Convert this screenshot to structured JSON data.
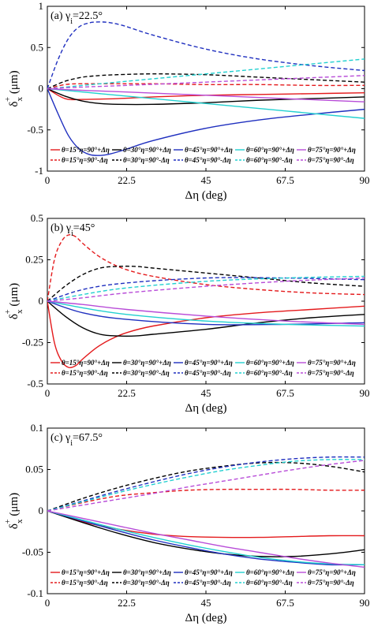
{
  "colors": {
    "15": "#e41a1c",
    "30": "#000000",
    "45": "#1f2fbf",
    "60": "#22d0d0",
    "75": "#b84cd8"
  },
  "chart_data": [
    {
      "type": "line",
      "title": "(a) γi=22.5°",
      "xlabel": "Δη (deg)",
      "ylabel": "δx+ (μm)",
      "xlim": [
        0,
        90
      ],
      "ylim": [
        -1,
        1
      ],
      "xticks": [
        0,
        22.5,
        45,
        67.5,
        90
      ],
      "xtick_labels": [
        "0",
        "22.5",
        "45",
        "67.5",
        "90"
      ],
      "yticks": [
        -1,
        -0.5,
        0,
        0.5,
        1
      ],
      "ytick_labels": [
        "-1",
        "-0.5",
        "0",
        "0.5",
        "1"
      ],
      "legend_position": "bottom",
      "series": [
        {
          "name": "θ=15°η=90°+Δη",
          "theta": "15",
          "style": "solid",
          "x": [
            0,
            5,
            10,
            20,
            30,
            45,
            60,
            75,
            90
          ],
          "y": [
            0,
            -0.12,
            -0.13,
            -0.12,
            -0.1,
            -0.08,
            -0.07,
            -0.06,
            -0.05
          ]
        },
        {
          "name": "θ=15°η=90°-Δη",
          "theta": "15",
          "style": "dashed",
          "x": [
            0,
            5,
            10,
            20,
            30,
            45,
            60,
            75,
            90
          ],
          "y": [
            0,
            0.05,
            0.06,
            0.06,
            0.06,
            0.05,
            0.05,
            0.04,
            0.04
          ]
        },
        {
          "name": "θ=30°η=90°+Δη",
          "theta": "30",
          "style": "solid",
          "x": [
            0,
            5,
            10,
            15,
            20,
            30,
            45,
            60,
            75,
            90
          ],
          "y": [
            0,
            -0.09,
            -0.15,
            -0.18,
            -0.19,
            -0.19,
            -0.17,
            -0.14,
            -0.12,
            -0.1
          ]
        },
        {
          "name": "θ=30°η=90°-Δη",
          "theta": "30",
          "style": "dashed",
          "x": [
            0,
            5,
            10,
            15,
            20,
            30,
            45,
            60,
            75,
            90
          ],
          "y": [
            0,
            0.09,
            0.14,
            0.16,
            0.17,
            0.18,
            0.17,
            0.14,
            0.11,
            0.08
          ]
        },
        {
          "name": "θ=45°η=90°+Δη",
          "theta": "45",
          "style": "solid",
          "x": [
            0,
            3,
            6,
            9,
            12,
            15,
            18,
            22,
            30,
            45,
            60,
            75,
            90
          ],
          "y": [
            0,
            -0.3,
            -0.57,
            -0.73,
            -0.8,
            -0.81,
            -0.79,
            -0.74,
            -0.63,
            -0.48,
            -0.38,
            -0.31,
            -0.25
          ]
        },
        {
          "name": "θ=45°η=90°-Δη",
          "theta": "45",
          "style": "dashed",
          "x": [
            0,
            3,
            6,
            9,
            12,
            15,
            18,
            22,
            30,
            45,
            60,
            75,
            90
          ],
          "y": [
            0,
            0.35,
            0.61,
            0.75,
            0.8,
            0.81,
            0.8,
            0.76,
            0.65,
            0.48,
            0.36,
            0.28,
            0.22
          ]
        },
        {
          "name": "θ=60°η=90°+Δη",
          "theta": "60",
          "style": "solid",
          "x": [
            0,
            10,
            22.5,
            45,
            67.5,
            90
          ],
          "y": [
            0,
            -0.04,
            -0.09,
            -0.18,
            -0.27,
            -0.36
          ]
        },
        {
          "name": "θ=60°η=90°-Δη",
          "theta": "60",
          "style": "dashed",
          "x": [
            0,
            10,
            22.5,
            45,
            67.5,
            90
          ],
          "y": [
            0,
            0.04,
            0.09,
            0.18,
            0.27,
            0.36
          ]
        },
        {
          "name": "θ=75°η=90°+Δη",
          "theta": "75",
          "style": "solid",
          "x": [
            0,
            10,
            22.5,
            45,
            67.5,
            90
          ],
          "y": [
            0,
            -0.02,
            -0.04,
            -0.08,
            -0.12,
            -0.16
          ]
        },
        {
          "name": "θ=75°η=90°-Δη",
          "theta": "75",
          "style": "dashed",
          "x": [
            0,
            10,
            22.5,
            45,
            67.5,
            90
          ],
          "y": [
            0,
            0.02,
            0.04,
            0.08,
            0.12,
            0.16
          ]
        }
      ]
    },
    {
      "type": "line",
      "title": "(b) γi=45°",
      "xlabel": "Δη (deg)",
      "ylabel": "δx+ (μm)",
      "xlim": [
        0,
        90
      ],
      "ylim": [
        -0.5,
        0.5
      ],
      "xticks": [
        0,
        22.5,
        45,
        67.5,
        90
      ],
      "xtick_labels": [
        "0",
        "22.5",
        "45",
        "67.5",
        "90"
      ],
      "yticks": [
        -0.5,
        -0.25,
        0,
        0.25,
        0.5
      ],
      "ytick_labels": [
        "-0.5",
        "-0.25",
        "0",
        "0.25",
        "0.5"
      ],
      "legend_position": "bottom",
      "series": [
        {
          "name": "θ=15°η=90°+Δη",
          "theta": "15",
          "style": "solid",
          "x": [
            0,
            2,
            4,
            6,
            8,
            10,
            14,
            18,
            22.5,
            30,
            45,
            60,
            75,
            90
          ],
          "y": [
            0,
            -0.25,
            -0.36,
            -0.4,
            -0.39,
            -0.35,
            -0.28,
            -0.23,
            -0.19,
            -0.15,
            -0.1,
            -0.07,
            -0.05,
            -0.03
          ]
        },
        {
          "name": "θ=15°η=90°-Δη",
          "theta": "15",
          "style": "dashed",
          "x": [
            0,
            2,
            4,
            6,
            8,
            10,
            14,
            18,
            22.5,
            30,
            45,
            60,
            75,
            90
          ],
          "y": [
            0,
            0.25,
            0.36,
            0.4,
            0.39,
            0.35,
            0.28,
            0.23,
            0.19,
            0.15,
            0.1,
            0.07,
            0.05,
            0.04
          ]
        },
        {
          "name": "θ=30°η=90°+Δη",
          "theta": "30",
          "style": "solid",
          "x": [
            0,
            5,
            10,
            15,
            20,
            25,
            30,
            45,
            60,
            75,
            90
          ],
          "y": [
            0,
            -0.09,
            -0.16,
            -0.2,
            -0.21,
            -0.21,
            -0.2,
            -0.17,
            -0.13,
            -0.1,
            -0.08
          ]
        },
        {
          "name": "θ=30°η=90°-Δη",
          "theta": "30",
          "style": "dashed",
          "x": [
            0,
            5,
            10,
            15,
            20,
            25,
            30,
            45,
            60,
            75,
            90
          ],
          "y": [
            0,
            0.09,
            0.16,
            0.2,
            0.21,
            0.21,
            0.2,
            0.17,
            0.14,
            0.11,
            0.09
          ]
        },
        {
          "name": "θ=45°η=90°+Δη",
          "theta": "45",
          "style": "solid",
          "x": [
            0,
            10,
            22.5,
            45,
            67.5,
            90
          ],
          "y": [
            0,
            -0.07,
            -0.11,
            -0.14,
            -0.14,
            -0.13
          ]
        },
        {
          "name": "θ=45°η=90°-Δη",
          "theta": "45",
          "style": "dashed",
          "x": [
            0,
            10,
            22.5,
            45,
            67.5,
            90
          ],
          "y": [
            0,
            0.07,
            0.11,
            0.14,
            0.14,
            0.13
          ]
        },
        {
          "name": "θ=60°η=90°+Δη",
          "theta": "60",
          "style": "solid",
          "x": [
            0,
            10,
            22.5,
            45,
            67.5,
            90
          ],
          "y": [
            0,
            -0.04,
            -0.08,
            -0.12,
            -0.14,
            -0.15
          ]
        },
        {
          "name": "θ=60°η=90°-Δη",
          "theta": "60",
          "style": "dashed",
          "x": [
            0,
            10,
            22.5,
            45,
            67.5,
            90
          ],
          "y": [
            0,
            0.04,
            0.08,
            0.12,
            0.14,
            0.15
          ]
        },
        {
          "name": "θ=75°η=90°+Δη",
          "theta": "75",
          "style": "solid",
          "x": [
            0,
            10,
            22.5,
            45,
            67.5,
            90
          ],
          "y": [
            0,
            -0.02,
            -0.05,
            -0.09,
            -0.12,
            -0.14
          ]
        },
        {
          "name": "θ=75°η=90°-Δη",
          "theta": "75",
          "style": "dashed",
          "x": [
            0,
            10,
            22.5,
            45,
            67.5,
            90
          ],
          "y": [
            0,
            0.02,
            0.05,
            0.09,
            0.12,
            0.14
          ]
        }
      ]
    },
    {
      "type": "line",
      "title": "(c) γi=67.5°",
      "xlabel": "Δη (deg)",
      "ylabel": "δx+ (μm)",
      "xlim": [
        0,
        90
      ],
      "ylim": [
        -0.1,
        0.1
      ],
      "xticks": [
        0,
        22.5,
        45,
        67.5,
        90
      ],
      "xtick_labels": [
        "0",
        "22.5",
        "45",
        "67.5",
        "90"
      ],
      "yticks": [
        -0.1,
        -0.05,
        0,
        0.05,
        0.1
      ],
      "ytick_labels": [
        "-0.1",
        "-0.05",
        "0",
        "0.05",
        "0.1"
      ],
      "legend_position": "bottom",
      "series": [
        {
          "name": "θ=15°η=90°+Δη",
          "theta": "15",
          "style": "solid",
          "x": [
            0,
            10,
            20,
            30,
            40,
            50,
            60,
            70,
            80,
            90
          ],
          "y": [
            0,
            -0.013,
            -0.022,
            -0.028,
            -0.031,
            -0.032,
            -0.032,
            -0.031,
            -0.03,
            -0.03
          ]
        },
        {
          "name": "θ=15°η=90°-Δη",
          "theta": "15",
          "style": "dashed",
          "x": [
            0,
            10,
            20,
            30,
            40,
            50,
            60,
            70,
            80,
            90
          ],
          "y": [
            0,
            0.01,
            0.018,
            0.022,
            0.025,
            0.026,
            0.026,
            0.026,
            0.025,
            0.025
          ]
        },
        {
          "name": "θ=30°η=90°+Δη",
          "theta": "30",
          "style": "solid",
          "x": [
            0,
            10,
            20,
            30,
            40,
            50,
            60,
            70,
            80,
            90
          ],
          "y": [
            0,
            -0.014,
            -0.027,
            -0.038,
            -0.046,
            -0.052,
            -0.055,
            -0.055,
            -0.052,
            -0.047
          ]
        },
        {
          "name": "θ=30°η=90°-Δη",
          "theta": "30",
          "style": "dashed",
          "x": [
            0,
            10,
            20,
            30,
            40,
            50,
            60,
            70,
            80,
            90
          ],
          "y": [
            0,
            0.015,
            0.028,
            0.039,
            0.048,
            0.054,
            0.058,
            0.058,
            0.054,
            0.047
          ]
        },
        {
          "name": "θ=45°η=90°+Δη",
          "theta": "45",
          "style": "solid",
          "x": [
            0,
            10,
            20,
            30,
            40,
            50,
            60,
            70,
            80,
            90
          ],
          "y": [
            0,
            -0.012,
            -0.024,
            -0.035,
            -0.044,
            -0.052,
            -0.058,
            -0.062,
            -0.065,
            -0.065
          ]
        },
        {
          "name": "θ=45°η=90°-Δη",
          "theta": "45",
          "style": "dashed",
          "x": [
            0,
            10,
            20,
            30,
            40,
            50,
            60,
            70,
            80,
            90
          ],
          "y": [
            0,
            0.012,
            0.024,
            0.035,
            0.045,
            0.053,
            0.059,
            0.063,
            0.065,
            0.065
          ]
        },
        {
          "name": "θ=60°η=90°+Δη",
          "theta": "60",
          "style": "solid",
          "x": [
            0,
            10,
            20,
            30,
            40,
            50,
            60,
            70,
            80,
            90
          ],
          "y": [
            0,
            -0.011,
            -0.022,
            -0.032,
            -0.041,
            -0.049,
            -0.056,
            -0.061,
            -0.064,
            -0.065
          ]
        },
        {
          "name": "θ=60°η=90°-Δη",
          "theta": "60",
          "style": "dashed",
          "x": [
            0,
            10,
            20,
            30,
            40,
            50,
            60,
            70,
            80,
            90
          ],
          "y": [
            0,
            0.011,
            0.022,
            0.032,
            0.041,
            0.049,
            0.055,
            0.06,
            0.062,
            0.062
          ]
        },
        {
          "name": "θ=75°η=90°+Δη",
          "theta": "75",
          "style": "solid",
          "x": [
            0,
            10,
            20,
            30,
            40,
            50,
            60,
            70,
            80,
            90
          ],
          "y": [
            0,
            -0.009,
            -0.018,
            -0.027,
            -0.035,
            -0.043,
            -0.05,
            -0.057,
            -0.063,
            -0.068
          ]
        },
        {
          "name": "θ=75°η=90°-Δη",
          "theta": "75",
          "style": "dashed",
          "x": [
            0,
            10,
            20,
            30,
            40,
            50,
            60,
            70,
            80,
            90
          ],
          "y": [
            0,
            0.007,
            0.014,
            0.021,
            0.029,
            0.036,
            0.043,
            0.05,
            0.056,
            0.061
          ]
        }
      ]
    }
  ]
}
